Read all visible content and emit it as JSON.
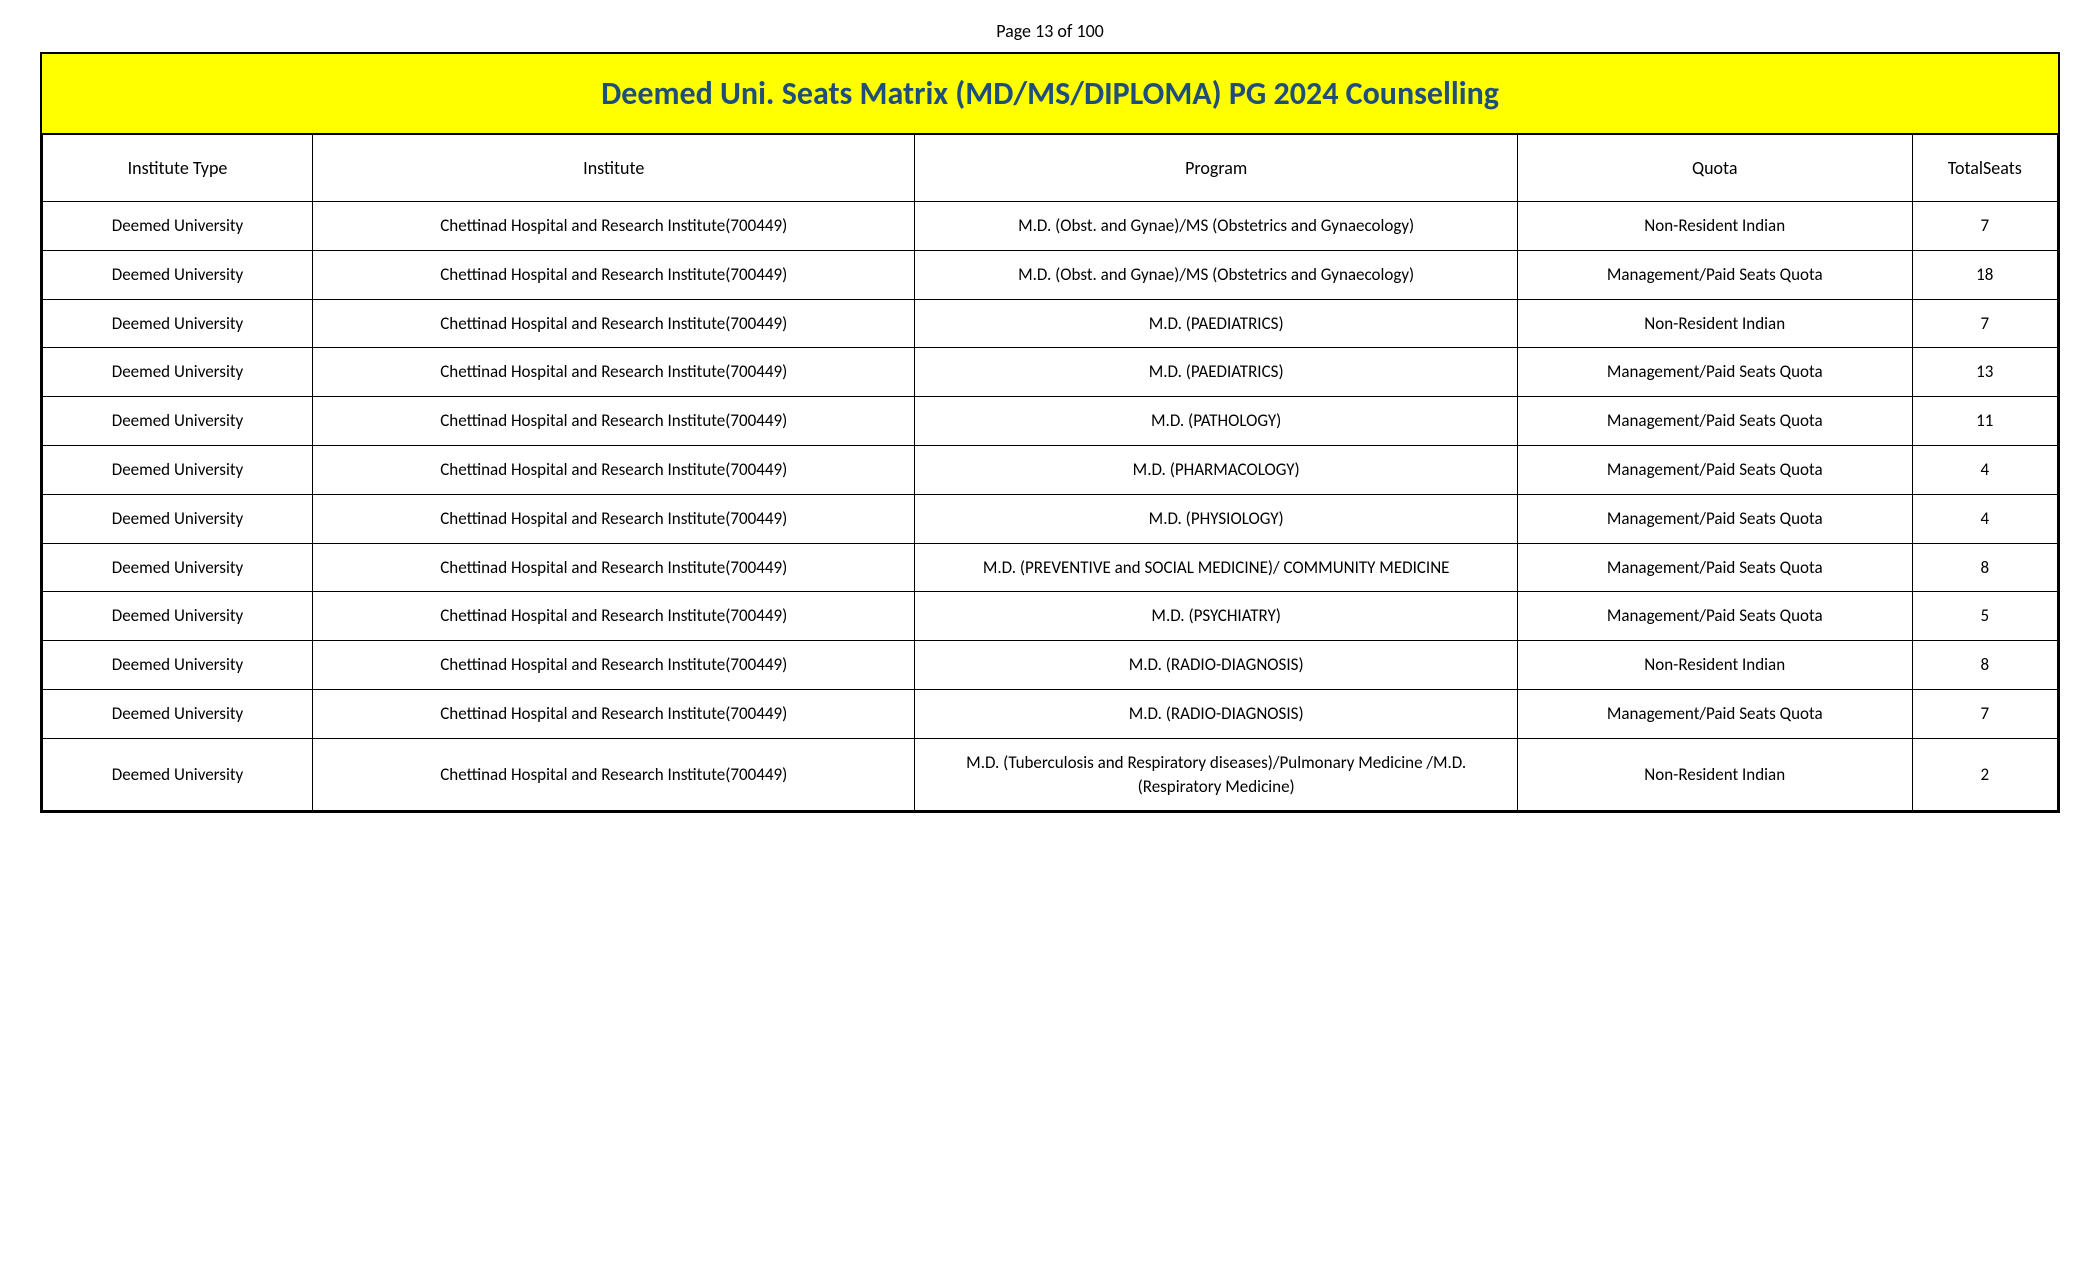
{
  "page_indicator": "Page 13 of 100",
  "title": "Deemed Uni. Seats Matrix (MD/MS/DIPLOMA) PG 2024 Counselling",
  "columns": [
    "Institute Type",
    "Institute",
    "Program",
    "Quota",
    "TotalSeats"
  ],
  "rows": [
    [
      "Deemed University",
      "Chettinad Hospital and Research Institute(700449)",
      "M.D. (Obst. and Gynae)/MS (Obstetrics and Gynaecology)",
      "Non-Resident Indian",
      "7"
    ],
    [
      "Deemed University",
      "Chettinad Hospital and Research Institute(700449)",
      "M.D. (Obst. and Gynae)/MS (Obstetrics and Gynaecology)",
      "Management/Paid Seats Quota",
      "18"
    ],
    [
      "Deemed University",
      "Chettinad Hospital and Research Institute(700449)",
      "M.D. (PAEDIATRICS)",
      "Non-Resident Indian",
      "7"
    ],
    [
      "Deemed University",
      "Chettinad Hospital and Research Institute(700449)",
      "M.D. (PAEDIATRICS)",
      "Management/Paid Seats Quota",
      "13"
    ],
    [
      "Deemed University",
      "Chettinad Hospital and Research Institute(700449)",
      "M.D. (PATHOLOGY)",
      "Management/Paid Seats Quota",
      "11"
    ],
    [
      "Deemed University",
      "Chettinad Hospital and Research Institute(700449)",
      "M.D. (PHARMACOLOGY)",
      "Management/Paid Seats Quota",
      "4"
    ],
    [
      "Deemed University",
      "Chettinad Hospital and Research Institute(700449)",
      "M.D. (PHYSIOLOGY)",
      "Management/Paid Seats Quota",
      "4"
    ],
    [
      "Deemed University",
      "Chettinad Hospital and Research Institute(700449)",
      "M.D. (PREVENTIVE and SOCIAL MEDICINE)/ COMMUNITY MEDICINE",
      "Management/Paid Seats Quota",
      "8"
    ],
    [
      "Deemed University",
      "Chettinad Hospital and Research Institute(700449)",
      "M.D. (PSYCHIATRY)",
      "Management/Paid Seats Quota",
      "5"
    ],
    [
      "Deemed University",
      "Chettinad Hospital and Research Institute(700449)",
      "M.D. (RADIO-DIAGNOSIS)",
      "Non-Resident Indian",
      "8"
    ],
    [
      "Deemed University",
      "Chettinad Hospital and Research Institute(700449)",
      "M.D. (RADIO-DIAGNOSIS)",
      "Management/Paid Seats Quota",
      "7"
    ],
    [
      "Deemed University",
      "Chettinad Hospital and Research Institute(700449)",
      "M.D. (Tuberculosis and Respiratory diseases)/Pulmonary Medicine /M.D. (Respiratory Medicine)",
      "Non-Resident Indian",
      "2"
    ]
  ],
  "styling": {
    "title_bg": "#ffff00",
    "title_color": "#1f4e79",
    "border_color": "#000000",
    "text_color": "#000000",
    "title_fontsize": 32,
    "header_fontsize": 18,
    "cell_fontsize": 17
  }
}
